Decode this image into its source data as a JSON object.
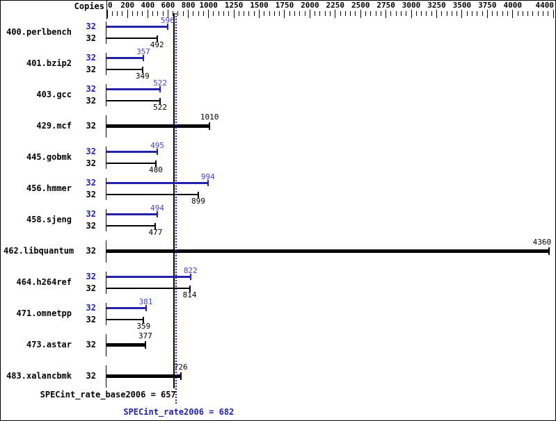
{
  "chart_data": {
    "type": "bar",
    "orientation": "horizontal",
    "copies_header": "Copies",
    "axis": {
      "min": 0,
      "max": 4400,
      "minor_step": 50,
      "major_ticks": [
        0,
        200,
        400,
        600,
        800,
        1000,
        1250,
        1500,
        1750,
        2000,
        2250,
        2500,
        2750,
        3000,
        3250,
        3500,
        3750,
        4000,
        4400
      ],
      "position": "top",
      "grid": false
    },
    "series_legend": [
      {
        "name": "peak",
        "color": "#2222aa"
      },
      {
        "name": "base",
        "color": "#000000"
      }
    ],
    "benchmarks": [
      {
        "name": "400.perlbench",
        "bars": [
          {
            "series": "peak",
            "copies": "32",
            "value": 596
          },
          {
            "series": "base",
            "copies": "32",
            "value": 492
          }
        ]
      },
      {
        "name": "401.bzip2",
        "bars": [
          {
            "series": "peak",
            "copies": "32",
            "value": 357
          },
          {
            "series": "base",
            "copies": "32",
            "value": 349
          }
        ]
      },
      {
        "name": "403.gcc",
        "bars": [
          {
            "series": "peak",
            "copies": "32",
            "value": 522
          },
          {
            "series": "base",
            "copies": "32",
            "value": 522
          }
        ]
      },
      {
        "name": "429.mcf",
        "bars": [
          {
            "series": "base",
            "copies": "32",
            "value": 1010,
            "thick": true
          }
        ]
      },
      {
        "name": "445.gobmk",
        "bars": [
          {
            "series": "peak",
            "copies": "32",
            "value": 495
          },
          {
            "series": "base",
            "copies": "32",
            "value": 480
          }
        ]
      },
      {
        "name": "456.hmmer",
        "bars": [
          {
            "series": "peak",
            "copies": "32",
            "value": 994
          },
          {
            "series": "base",
            "copies": "32",
            "value": 899
          }
        ]
      },
      {
        "name": "458.sjeng",
        "bars": [
          {
            "series": "peak",
            "copies": "32",
            "value": 494
          },
          {
            "series": "base",
            "copies": "32",
            "value": 477
          }
        ]
      },
      {
        "name": "462.libquantum",
        "bars": [
          {
            "series": "base",
            "copies": "32",
            "value": 4360,
            "thick": true
          }
        ]
      },
      {
        "name": "464.h264ref",
        "bars": [
          {
            "series": "peak",
            "copies": "32",
            "value": 822
          },
          {
            "series": "base",
            "copies": "32",
            "value": 814
          }
        ]
      },
      {
        "name": "471.omnetpp",
        "bars": [
          {
            "series": "peak",
            "copies": "32",
            "value": 381
          },
          {
            "series": "base",
            "copies": "32",
            "value": 359
          }
        ]
      },
      {
        "name": "473.astar",
        "bars": [
          {
            "series": "base",
            "copies": "32",
            "value": 377,
            "thick": true
          }
        ]
      },
      {
        "name": "483.xalancbmk",
        "bars": [
          {
            "series": "base",
            "copies": "32",
            "value": 726,
            "thick": true
          }
        ]
      }
    ],
    "summary": [
      {
        "series": "base",
        "label": "SPECint_rate_base2006 = 657",
        "value": 657,
        "line_style": "solid"
      },
      {
        "series": "peak",
        "label": "SPECint_rate2006 = 682",
        "value": 682,
        "line_style": "dotted"
      }
    ],
    "colors": {
      "peak": "#2222aa",
      "base": "#000000",
      "peak_value_text": "#4444c6",
      "background": "#ffffff"
    }
  }
}
